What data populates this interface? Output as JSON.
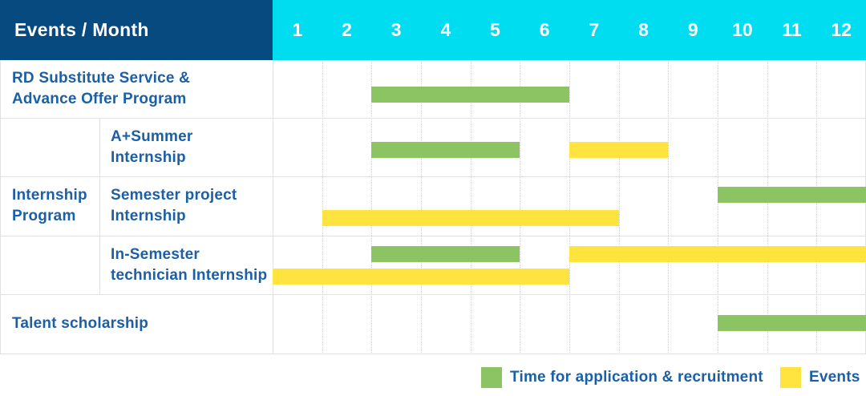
{
  "header": {
    "corner_label": "Events / Month",
    "months": [
      "1",
      "2",
      "3",
      "4",
      "5",
      "6",
      "7",
      "8",
      "9",
      "10",
      "11",
      "12"
    ]
  },
  "colors": {
    "header_navy": "#074a7f",
    "header_cyan": "#00dcf0",
    "bar_green": "#8cc463",
    "bar_yellow": "#ffe440",
    "label_blue": "#1b5fa7"
  },
  "group_label_lines": [
    "Internship",
    "Program"
  ],
  "rows": [
    {
      "label_lines": [
        "RD Substitute Service &",
        "Advance Offer Program"
      ],
      "group": null,
      "bars": [
        {
          "type": "application",
          "band": "single",
          "start_month": 3,
          "end_month": 6
        }
      ]
    },
    {
      "label_lines": [
        "A+Summer",
        "Internship"
      ],
      "group": "Internship Program",
      "bars": [
        {
          "type": "application",
          "band": "single",
          "start_month": 3,
          "end_month": 5
        },
        {
          "type": "event",
          "band": "single",
          "start_month": 7,
          "end_month": 8
        }
      ]
    },
    {
      "label_lines": [
        "Semester project",
        "Internship"
      ],
      "group": "Internship Program",
      "bars": [
        {
          "type": "application",
          "band": "upper",
          "start_month": 10,
          "end_month": 12
        },
        {
          "type": "event",
          "band": "lower",
          "start_month": 2,
          "end_month": 7
        }
      ]
    },
    {
      "label_lines": [
        "In-Semester",
        "technician Internship"
      ],
      "group": "Internship Program",
      "bars": [
        {
          "type": "application",
          "band": "upper",
          "start_month": 3,
          "end_month": 5
        },
        {
          "type": "event",
          "band": "upper",
          "start_month": 7,
          "end_month": 12
        },
        {
          "type": "event",
          "band": "lower",
          "start_month": 1,
          "end_month": 6
        }
      ]
    },
    {
      "label_lines": [
        "Talent scholarship"
      ],
      "group": null,
      "bars": [
        {
          "type": "application",
          "band": "single",
          "start_month": 10,
          "end_month": 12
        }
      ]
    }
  ],
  "legend": [
    {
      "swatch": "green",
      "label": "Time for application & recruitment"
    },
    {
      "swatch": "yellow",
      "label": "Events"
    }
  ],
  "chart_data": {
    "type": "gantt",
    "title": "Events / Month",
    "x_categories": [
      "1",
      "2",
      "3",
      "4",
      "5",
      "6",
      "7",
      "8",
      "9",
      "10",
      "11",
      "12"
    ],
    "x_axis_label": "Month",
    "legend": [
      "Time for application & recruitment",
      "Events"
    ],
    "legend_position": "bottom-right",
    "grid": true,
    "tasks": [
      {
        "row": "RD Substitute Service & Advance Offer Program",
        "series": "Time for application & recruitment",
        "start_month": 3,
        "end_month": 6
      },
      {
        "row": "Internship Program / A+Summer Internship",
        "series": "Time for application & recruitment",
        "start_month": 3,
        "end_month": 5
      },
      {
        "row": "Internship Program / A+Summer Internship",
        "series": "Events",
        "start_month": 7,
        "end_month": 8
      },
      {
        "row": "Internship Program / Semester project Internship",
        "series": "Time for application & recruitment",
        "start_month": 10,
        "end_month": 12
      },
      {
        "row": "Internship Program / Semester project Internship",
        "series": "Events",
        "start_month": 2,
        "end_month": 7
      },
      {
        "row": "Internship Program / In-Semester technician Internship",
        "series": "Time for application & recruitment",
        "start_month": 3,
        "end_month": 5
      },
      {
        "row": "Internship Program / In-Semester technician Internship",
        "series": "Events",
        "start_month": 7,
        "end_month": 12
      },
      {
        "row": "Internship Program / In-Semester technician Internship",
        "series": "Events",
        "start_month": 1,
        "end_month": 6
      },
      {
        "row": "Talent scholarship",
        "series": "Time for application & recruitment",
        "start_month": 10,
        "end_month": 12
      }
    ]
  }
}
